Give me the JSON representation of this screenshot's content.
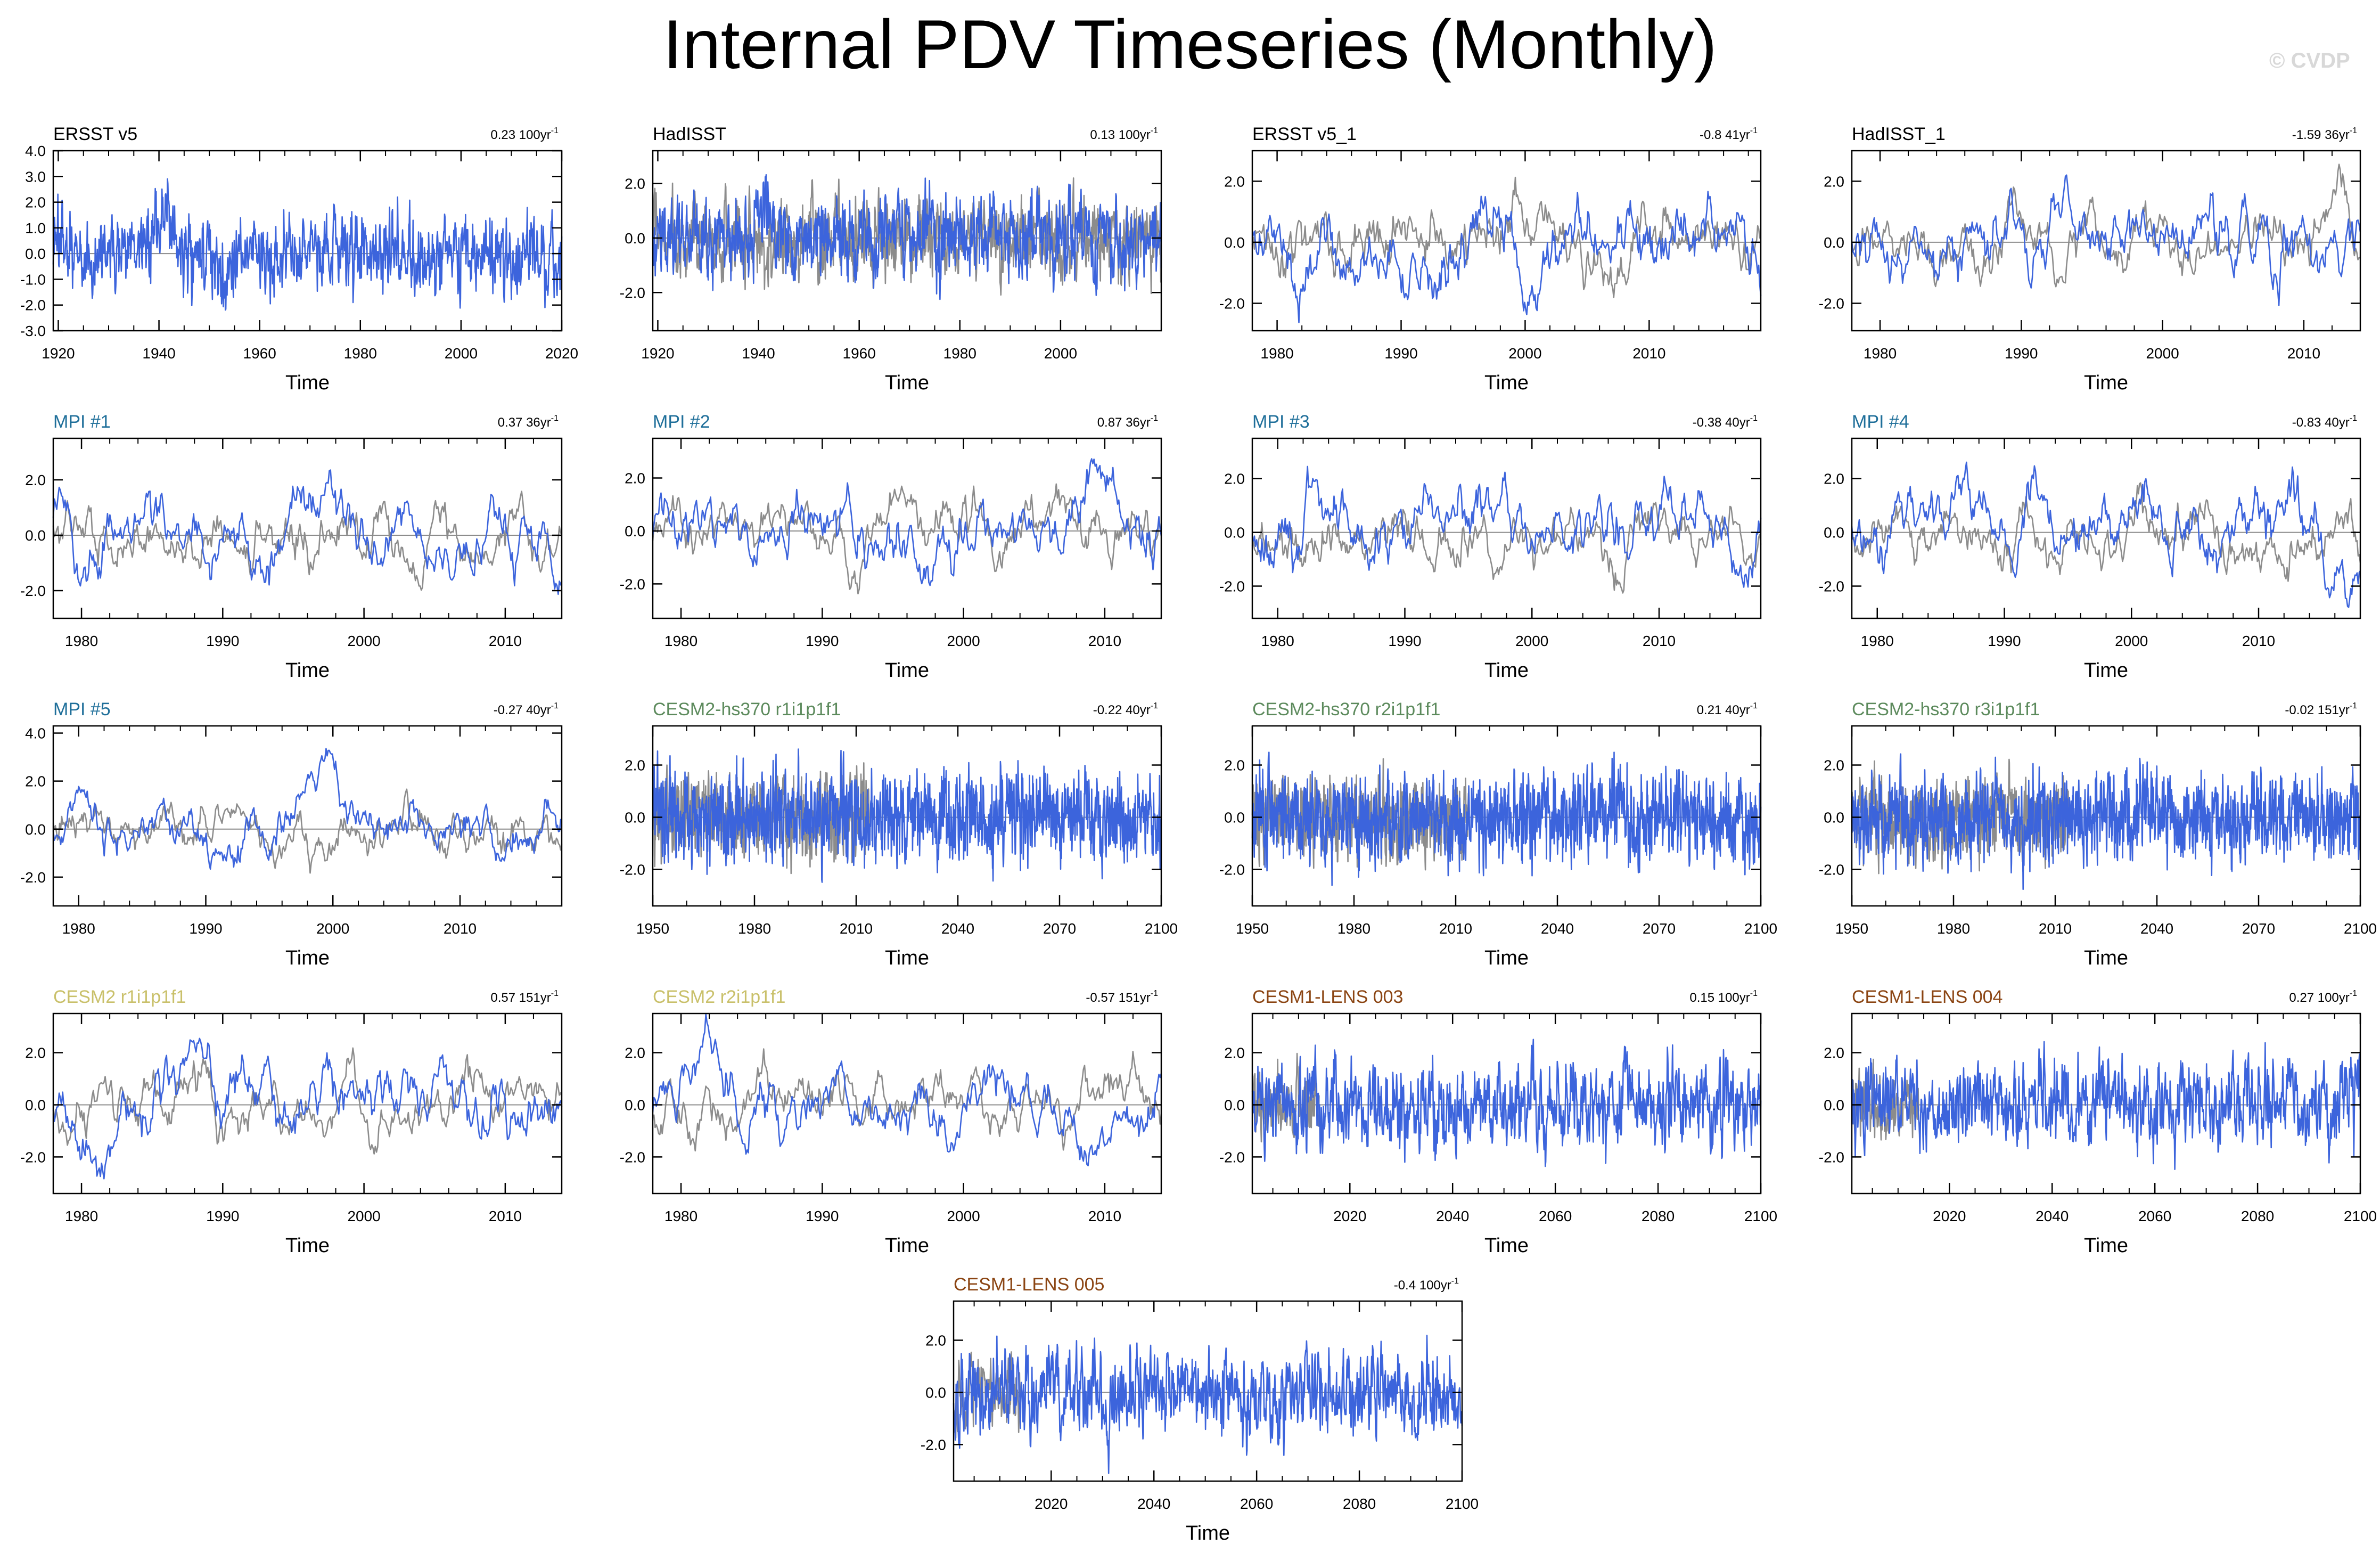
{
  "title": "Internal PDV Timeseries (Monthly)",
  "watermark": "© CVDP",
  "colors": {
    "obs_label": "#000000",
    "mpi_label": "#1f6f9a",
    "cesm2_hs370_label": "#5c8a5c",
    "cesm2_label": "#c9c06a",
    "cesm1_lens_label": "#8b4513",
    "model_line": "#3c64dc",
    "obs_line": "#8c8c8c",
    "zero_line": "#8c8c8c"
  },
  "chart_data": [
    {
      "type": "line",
      "title": "ERSST v5",
      "title_color": "obs_label",
      "trend": "0.23 100yr",
      "trend_sup": "-1",
      "xlabel": "Time",
      "x_ticks": [
        1920,
        1940,
        1960,
        1980,
        2000,
        2020
      ],
      "x_range": [
        1919,
        2020
      ],
      "y_ticks": [
        "4.0",
        "3.0",
        "2.0",
        "1.0",
        "0.0",
        "-1.0",
        "-2.0",
        "-3.0"
      ],
      "y_tick_values": [
        4,
        3,
        2,
        1,
        0,
        -1,
        -2,
        -3
      ],
      "y_range": [
        -3,
        4
      ],
      "series": [
        {
          "role": "model",
          "seed": 11,
          "amp": 1.05,
          "smooth": 0.55,
          "events": [
            [
              1941,
              1.6
            ],
            [
              1953,
              -1.3
            ]
          ]
        }
      ]
    },
    {
      "type": "line",
      "title": "HadISST",
      "title_color": "obs_label",
      "trend": "0.13 100yr",
      "trend_sup": "-1",
      "xlabel": "Time",
      "x_ticks": [
        1920,
        1940,
        1960,
        1980,
        2000
      ],
      "x_range": [
        1919,
        2020
      ],
      "y_ticks": [
        "2.0",
        "0.0",
        "-2.0"
      ],
      "y_tick_values": [
        2,
        0,
        -2
      ],
      "y_range": [
        -3.4,
        3.2
      ],
      "series": [
        {
          "role": "obs",
          "seed": 12,
          "amp": 1.0,
          "smooth": 0.55
        },
        {
          "role": "model",
          "seed": 13,
          "amp": 1.05,
          "smooth": 0.55,
          "events": [
            [
              1941,
              1.4
            ]
          ]
        }
      ]
    },
    {
      "type": "line",
      "title": "ERSST v5_1",
      "title_color": "obs_label",
      "trend": "-0.8 41yr",
      "trend_sup": "-1",
      "xlabel": "Time",
      "x_ticks": [
        1980,
        1990,
        2000,
        2010
      ],
      "x_range": [
        1978,
        2019
      ],
      "y_ticks": [
        "2.0",
        "0.0",
        "-2.0"
      ],
      "y_tick_values": [
        2,
        0,
        -2
      ],
      "y_range": [
        -2.9,
        3.0
      ],
      "series": [
        {
          "role": "obs",
          "seed": 14,
          "amp": 0.85,
          "smooth": 0.88
        },
        {
          "role": "model",
          "seed": 15,
          "amp": 1.0,
          "smooth": 0.88,
          "events": [
            [
              1998,
              1.4
            ],
            [
              2000,
              -1.6
            ]
          ]
        }
      ]
    },
    {
      "type": "line",
      "title": "HadISST_1",
      "title_color": "obs_label",
      "trend": "-1.59 36yr",
      "trend_sup": "-1",
      "xlabel": "Time",
      "x_ticks": [
        1980,
        1990,
        2000,
        2010
      ],
      "x_range": [
        1978,
        2014
      ],
      "y_ticks": [
        "2.0",
        "0.0",
        "-2.0"
      ],
      "y_tick_values": [
        2,
        0,
        -2
      ],
      "y_range": [
        -2.9,
        3.0
      ],
      "series": [
        {
          "role": "obs",
          "seed": 16,
          "amp": 0.8,
          "smooth": 0.88
        },
        {
          "role": "model",
          "seed": 17,
          "amp": 1.0,
          "smooth": 0.88,
          "events": [
            [
              1998,
              1.3
            ]
          ]
        }
      ]
    },
    {
      "type": "line",
      "title": "MPI #1",
      "title_color": "mpi_label",
      "trend": "0.37 36yr",
      "trend_sup": "-1",
      "xlabel": "Time",
      "x_ticks": [
        1980,
        1990,
        2000,
        2010
      ],
      "x_range": [
        1978,
        2014
      ],
      "y_ticks": [
        "2.0",
        "0.0",
        "-2.0"
      ],
      "y_tick_values": [
        2,
        0,
        -2
      ],
      "y_range": [
        -3.0,
        3.5
      ],
      "series": [
        {
          "role": "obs",
          "seed": 21,
          "amp": 0.9,
          "smooth": 0.9
        },
        {
          "role": "model",
          "seed": 22,
          "amp": 1.05,
          "smooth": 0.9,
          "events": [
            [
              1997,
              1.6
            ],
            [
              1981,
              -1.6
            ]
          ]
        }
      ]
    },
    {
      "type": "line",
      "title": "MPI #2",
      "title_color": "mpi_label",
      "trend": "0.87 36yr",
      "trend_sup": "-1",
      "xlabel": "Time",
      "x_ticks": [
        1980,
        1990,
        2000,
        2010
      ],
      "x_range": [
        1978,
        2014
      ],
      "y_ticks": [
        "2.0",
        "0.0",
        "-2.0"
      ],
      "y_tick_values": [
        2,
        0,
        -2
      ],
      "y_range": [
        -3.3,
        3.5
      ],
      "series": [
        {
          "role": "obs",
          "seed": 23,
          "amp": 0.9,
          "smooth": 0.9
        },
        {
          "role": "model",
          "seed": 24,
          "amp": 1.05,
          "smooth": 0.9,
          "events": [
            [
              1998,
              -1.5
            ],
            [
              2010,
              1.4
            ]
          ]
        }
      ]
    },
    {
      "type": "line",
      "title": "MPI #3",
      "title_color": "mpi_label",
      "trend": "-0.38 40yr",
      "trend_sup": "-1",
      "xlabel": "Time",
      "x_ticks": [
        1980,
        1990,
        2000,
        2010
      ],
      "x_range": [
        1978,
        2018
      ],
      "y_ticks": [
        "2.0",
        "0.0",
        "-2.0"
      ],
      "y_tick_values": [
        2,
        0,
        -2
      ],
      "y_range": [
        -3.2,
        3.5
      ],
      "series": [
        {
          "role": "obs",
          "seed": 25,
          "amp": 0.9,
          "smooth": 0.9
        },
        {
          "role": "model",
          "seed": 26,
          "amp": 1.05,
          "smooth": 0.9,
          "events": [
            [
              2012,
              1.5
            ],
            [
              2017,
              -1.6
            ]
          ]
        }
      ]
    },
    {
      "type": "line",
      "title": "MPI #4",
      "title_color": "mpi_label",
      "trend": "-0.83 40yr",
      "trend_sup": "-1",
      "xlabel": "Time",
      "x_ticks": [
        1980,
        1990,
        2000,
        2010
      ],
      "x_range": [
        1978,
        2018
      ],
      "y_ticks": [
        "2.0",
        "0.0",
        "-2.0"
      ],
      "y_tick_values": [
        2,
        0,
        -2
      ],
      "y_range": [
        -3.2,
        3.5
      ],
      "series": [
        {
          "role": "obs",
          "seed": 27,
          "amp": 0.9,
          "smooth": 0.9
        },
        {
          "role": "model",
          "seed": 28,
          "amp": 1.05,
          "smooth": 0.9,
          "events": [
            [
              1987,
              1.7
            ],
            [
              2016,
              -1.5
            ]
          ]
        }
      ]
    },
    {
      "type": "line",
      "title": "MPI #5",
      "title_color": "mpi_label",
      "trend": "-0.27 40yr",
      "trend_sup": "-1",
      "xlabel": "Time",
      "x_ticks": [
        1980,
        1990,
        2000,
        2010
      ],
      "x_range": [
        1978,
        2018
      ],
      "y_ticks": [
        "4.0",
        "2.0",
        "0.0",
        "-2.0"
      ],
      "y_tick_values": [
        4,
        2,
        0,
        -2
      ],
      "y_range": [
        -3.2,
        4.3
      ],
      "series": [
        {
          "role": "obs",
          "seed": 31,
          "amp": 0.9,
          "smooth": 0.92
        },
        {
          "role": "model",
          "seed": 32,
          "amp": 0.9,
          "smooth": 0.92,
          "events": [
            [
              1999,
              2.9
            ]
          ]
        }
      ]
    },
    {
      "type": "line",
      "title": "CESM2-hs370 r1i1p1f1",
      "title_color": "cesm2_hs370_label",
      "trend": "-0.22 40yr",
      "trend_sup": "-1",
      "xlabel": "Time",
      "x_ticks": [
        1950,
        1980,
        2010,
        2040,
        2070,
        2100
      ],
      "x_range": [
        1950,
        2100
      ],
      "y_ticks": [
        "2.0",
        "0.0",
        "-2.0"
      ],
      "y_tick_values": [
        2,
        0,
        -2
      ],
      "y_range": [
        -3.4,
        3.5
      ],
      "series": [
        {
          "role": "obs",
          "seed": 33,
          "amp": 1.0,
          "smooth": 0.45,
          "x_end": 2014
        },
        {
          "role": "model",
          "seed": 34,
          "amp": 1.1,
          "smooth": 0.45
        }
      ]
    },
    {
      "type": "line",
      "title": "CESM2-hs370 r2i1p1f1",
      "title_color": "cesm2_hs370_label",
      "trend": "0.21 40yr",
      "trend_sup": "-1",
      "xlabel": "Time",
      "x_ticks": [
        1950,
        1980,
        2010,
        2040,
        2070,
        2100
      ],
      "x_range": [
        1950,
        2100
      ],
      "y_ticks": [
        "2.0",
        "0.0",
        "-2.0"
      ],
      "y_tick_values": [
        2,
        0,
        -2
      ],
      "y_range": [
        -3.4,
        3.5
      ],
      "series": [
        {
          "role": "obs",
          "seed": 35,
          "amp": 1.0,
          "smooth": 0.45,
          "x_end": 2014
        },
        {
          "role": "model",
          "seed": 36,
          "amp": 1.1,
          "smooth": 0.45
        }
      ]
    },
    {
      "type": "line",
      "title": "CESM2-hs370 r3i1p1f1",
      "title_color": "cesm2_hs370_label",
      "trend": "-0.02 151yr",
      "trend_sup": "-1",
      "xlabel": "Time",
      "x_ticks": [
        1950,
        1980,
        2010,
        2040,
        2070,
        2100
      ],
      "x_range": [
        1950,
        2100
      ],
      "y_ticks": [
        "2.0",
        "0.0",
        "-2.0"
      ],
      "y_tick_values": [
        2,
        0,
        -2
      ],
      "y_range": [
        -3.4,
        3.5
      ],
      "series": [
        {
          "role": "obs",
          "seed": 37,
          "amp": 1.0,
          "smooth": 0.45,
          "x_end": 2014
        },
        {
          "role": "model",
          "seed": 38,
          "amp": 1.1,
          "smooth": 0.45
        }
      ]
    },
    {
      "type": "line",
      "title": "CESM2 r1i1p1f1",
      "title_color": "cesm2_label",
      "trend": "0.57 151yr",
      "trend_sup": "-1",
      "xlabel": "Time",
      "x_ticks": [
        1980,
        1990,
        2000,
        2010
      ],
      "x_range": [
        1978,
        2014
      ],
      "y_ticks": [
        "2.0",
        "0.0",
        "-2.0"
      ],
      "y_tick_values": [
        2,
        0,
        -2
      ],
      "y_range": [
        -3.4,
        3.5
      ],
      "series": [
        {
          "role": "obs",
          "seed": 41,
          "amp": 0.9,
          "smooth": 0.9
        },
        {
          "role": "model",
          "seed": 42,
          "amp": 1.05,
          "smooth": 0.9,
          "events": [
            [
              1981,
              -1.7
            ],
            [
              1988,
              1.5
            ]
          ]
        }
      ]
    },
    {
      "type": "line",
      "title": "CESM2 r2i1p1f1",
      "title_color": "cesm2_label",
      "trend": "-0.57 151yr",
      "trend_sup": "-1",
      "xlabel": "Time",
      "x_ticks": [
        1980,
        1990,
        2000,
        2010
      ],
      "x_range": [
        1978,
        2014
      ],
      "y_ticks": [
        "2.0",
        "0.0",
        "-2.0"
      ],
      "y_tick_values": [
        2,
        0,
        -2
      ],
      "y_range": [
        -3.4,
        3.5
      ],
      "series": [
        {
          "role": "obs",
          "seed": 43,
          "amp": 0.9,
          "smooth": 0.9
        },
        {
          "role": "model",
          "seed": 44,
          "amp": 1.05,
          "smooth": 0.9,
          "events": [
            [
              1982,
              1.7
            ],
            [
              1988,
              -1.6
            ]
          ]
        }
      ]
    },
    {
      "type": "line",
      "title": "CESM1-LENS 003",
      "title_color": "cesm1_lens_label",
      "trend": "0.15 100yr",
      "trend_sup": "-1",
      "xlabel": "Time",
      "x_ticks": [
        2020,
        2040,
        2060,
        2080,
        2100
      ],
      "x_range": [
        2001,
        2100
      ],
      "y_ticks": [
        "2.0",
        "0.0",
        "-2.0"
      ],
      "y_tick_values": [
        2,
        0,
        -2
      ],
      "y_range": [
        -3.4,
        3.5
      ],
      "series": [
        {
          "role": "obs",
          "seed": 45,
          "amp": 0.9,
          "smooth": 0.55,
          "x_end": 2014
        },
        {
          "role": "model",
          "seed": 46,
          "amp": 1.1,
          "smooth": 0.55
        }
      ]
    },
    {
      "type": "line",
      "title": "CESM1-LENS 004",
      "title_color": "cesm1_lens_label",
      "trend": "0.27 100yr",
      "trend_sup": "-1",
      "xlabel": "Time",
      "x_ticks": [
        2020,
        2040,
        2060,
        2080,
        2100
      ],
      "x_range": [
        2001,
        2100
      ],
      "y_ticks": [
        "2.0",
        "0.0",
        "-2.0"
      ],
      "y_tick_values": [
        2,
        0,
        -2
      ],
      "y_range": [
        -3.4,
        3.5
      ],
      "series": [
        {
          "role": "obs",
          "seed": 47,
          "amp": 0.9,
          "smooth": 0.55,
          "x_end": 2014
        },
        {
          "role": "model",
          "seed": 48,
          "amp": 1.1,
          "smooth": 0.55
        }
      ]
    },
    {
      "type": "line",
      "title": "CESM1-LENS 005",
      "title_color": "cesm1_lens_label",
      "trend": "-0.4 100yr",
      "trend_sup": "-1",
      "xlabel": "Time",
      "x_ticks": [
        2020,
        2040,
        2060,
        2080,
        2100
      ],
      "x_range": [
        2001,
        2100
      ],
      "y_ticks": [
        "2.0",
        "0.0",
        "-2.0"
      ],
      "y_tick_values": [
        2,
        0,
        -2
      ],
      "y_range": [
        -3.4,
        3.5
      ],
      "series": [
        {
          "role": "obs",
          "seed": 51,
          "amp": 0.9,
          "smooth": 0.55,
          "x_end": 2014
        },
        {
          "role": "model",
          "seed": 52,
          "amp": 1.1,
          "smooth": 0.55
        }
      ]
    }
  ]
}
